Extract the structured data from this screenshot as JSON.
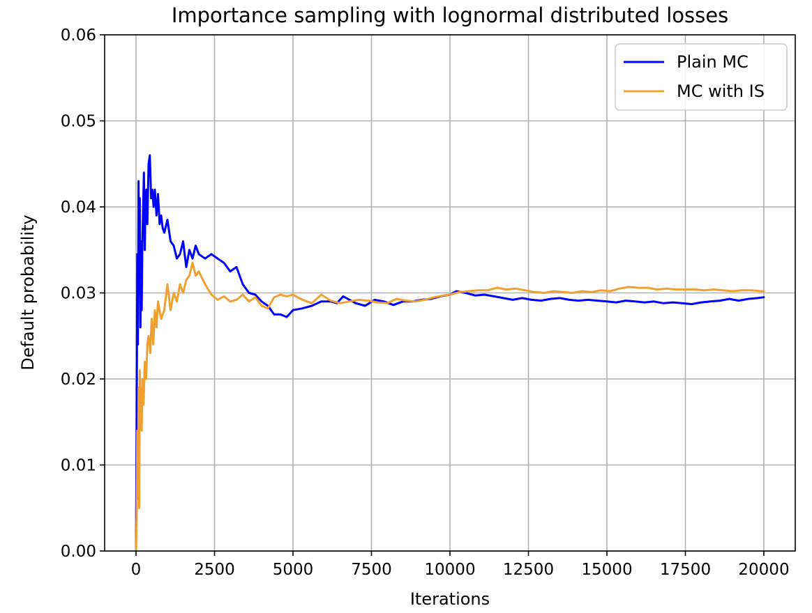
{
  "chart_data": {
    "type": "line",
    "title": "Importance sampling with lognormal distributed losses",
    "xlabel": "Iterations",
    "ylabel": "Default probability",
    "xlim": [
      -1000,
      21000
    ],
    "ylim": [
      0.0,
      0.06
    ],
    "xticks": [
      0,
      2500,
      5000,
      7500,
      10000,
      12500,
      15000,
      17500,
      20000
    ],
    "xtick_labels": [
      "0",
      "2500",
      "5000",
      "7500",
      "10000",
      "12500",
      "15000",
      "17500",
      "20000"
    ],
    "yticks": [
      0.0,
      0.01,
      0.02,
      0.03,
      0.04,
      0.05,
      0.06
    ],
    "ytick_labels": [
      "0.00",
      "0.01",
      "0.02",
      "0.03",
      "0.04",
      "0.05",
      "0.06"
    ],
    "grid": true,
    "legend_position": "top-right",
    "series": [
      {
        "name": "Plain MC",
        "color": "#0000ff",
        "x": [
          0,
          20,
          40,
          60,
          80,
          100,
          120,
          140,
          160,
          180,
          200,
          220,
          250,
          280,
          300,
          330,
          360,
          400,
          440,
          480,
          520,
          560,
          600,
          650,
          700,
          750,
          800,
          850,
          900,
          1000,
          1100,
          1200,
          1300,
          1400,
          1500,
          1600,
          1700,
          1800,
          1900,
          2000,
          2200,
          2400,
          2600,
          2800,
          3000,
          3200,
          3400,
          3600,
          3800,
          4000,
          4200,
          4400,
          4600,
          4800,
          5000,
          5300,
          5600,
          5900,
          6200,
          6400,
          6600,
          6800,
          7000,
          7300,
          7600,
          7900,
          8200,
          8500,
          8800,
          9100,
          9400,
          9700,
          10000,
          10200,
          10500,
          10800,
          11100,
          11400,
          11700,
          12000,
          12300,
          12600,
          12900,
          13200,
          13500,
          13800,
          14100,
          14400,
          14700,
          15000,
          15300,
          15600,
          15900,
          16200,
          16500,
          16800,
          17100,
          17400,
          17700,
          18000,
          18300,
          18600,
          18900,
          19200,
          19500,
          19800,
          20000
        ],
        "y": [
          0.0,
          0.015,
          0.0345,
          0.024,
          0.043,
          0.03,
          0.041,
          0.026,
          0.036,
          0.028,
          0.035,
          0.039,
          0.044,
          0.035,
          0.04,
          0.042,
          0.038,
          0.045,
          0.046,
          0.041,
          0.042,
          0.04,
          0.042,
          0.039,
          0.0415,
          0.038,
          0.039,
          0.0375,
          0.037,
          0.0385,
          0.036,
          0.0355,
          0.034,
          0.0345,
          0.036,
          0.033,
          0.035,
          0.034,
          0.0355,
          0.0345,
          0.034,
          0.0345,
          0.034,
          0.0335,
          0.0325,
          0.033,
          0.031,
          0.03,
          0.0298,
          0.029,
          0.0285,
          0.0275,
          0.0275,
          0.0272,
          0.028,
          0.0282,
          0.0285,
          0.029,
          0.029,
          0.0288,
          0.0296,
          0.0292,
          0.0288,
          0.0285,
          0.0292,
          0.029,
          0.0286,
          0.029,
          0.029,
          0.0292,
          0.0293,
          0.0296,
          0.0298,
          0.0302,
          0.03,
          0.0297,
          0.0298,
          0.0296,
          0.0294,
          0.0292,
          0.0294,
          0.0292,
          0.0291,
          0.0293,
          0.0294,
          0.0292,
          0.0291,
          0.0292,
          0.0291,
          0.029,
          0.0289,
          0.0291,
          0.029,
          0.0289,
          0.029,
          0.0288,
          0.0289,
          0.0288,
          0.0287,
          0.0289,
          0.029,
          0.0291,
          0.0293,
          0.0291,
          0.0293,
          0.0294,
          0.0295
        ]
      },
      {
        "name": "MC with IS",
        "color": "#f0a030",
        "x": [
          0,
          20,
          40,
          60,
          80,
          100,
          120,
          140,
          160,
          180,
          200,
          240,
          280,
          320,
          360,
          400,
          450,
          500,
          550,
          600,
          650,
          700,
          800,
          900,
          1000,
          1100,
          1200,
          1300,
          1400,
          1500,
          1600,
          1700,
          1800,
          1900,
          2000,
          2200,
          2400,
          2600,
          2800,
          3000,
          3200,
          3400,
          3600,
          3800,
          4000,
          4200,
          4400,
          4600,
          4800,
          5000,
          5300,
          5600,
          5900,
          6200,
          6500,
          6800,
          7100,
          7400,
          7700,
          8000,
          8300,
          8600,
          8900,
          9200,
          9500,
          9800,
          10000,
          10300,
          10600,
          10900,
          11200,
          11500,
          11800,
          12100,
          12400,
          12700,
          13000,
          13300,
          13600,
          13900,
          14200,
          14500,
          14800,
          15100,
          15400,
          15700,
          16000,
          16300,
          16600,
          16900,
          17200,
          17500,
          17800,
          18100,
          18400,
          18700,
          19000,
          19300,
          19600,
          19900,
          20000
        ],
        "y": [
          0.0,
          0.004,
          0.014,
          0.006,
          0.019,
          0.005,
          0.021,
          0.015,
          0.019,
          0.014,
          0.02,
          0.017,
          0.022,
          0.02,
          0.024,
          0.025,
          0.023,
          0.027,
          0.024,
          0.028,
          0.026,
          0.029,
          0.027,
          0.028,
          0.031,
          0.028,
          0.03,
          0.029,
          0.031,
          0.03,
          0.0315,
          0.032,
          0.0335,
          0.032,
          0.0325,
          0.031,
          0.0298,
          0.0292,
          0.0296,
          0.029,
          0.0292,
          0.0298,
          0.029,
          0.0295,
          0.0285,
          0.0282,
          0.0295,
          0.0298,
          0.0296,
          0.0298,
          0.0292,
          0.0288,
          0.0298,
          0.0291,
          0.0288,
          0.029,
          0.0292,
          0.0291,
          0.0289,
          0.0288,
          0.0293,
          0.0291,
          0.029,
          0.0292,
          0.0295,
          0.0297,
          0.0298,
          0.0301,
          0.0302,
          0.0303,
          0.0303,
          0.0306,
          0.0304,
          0.0305,
          0.0303,
          0.0301,
          0.03,
          0.0302,
          0.0301,
          0.03,
          0.0302,
          0.0301,
          0.0303,
          0.0302,
          0.0305,
          0.0307,
          0.0306,
          0.0306,
          0.0304,
          0.0305,
          0.0304,
          0.0304,
          0.0304,
          0.0303,
          0.0304,
          0.0303,
          0.0302,
          0.0303,
          0.0303,
          0.0302,
          0.0302
        ]
      }
    ]
  }
}
